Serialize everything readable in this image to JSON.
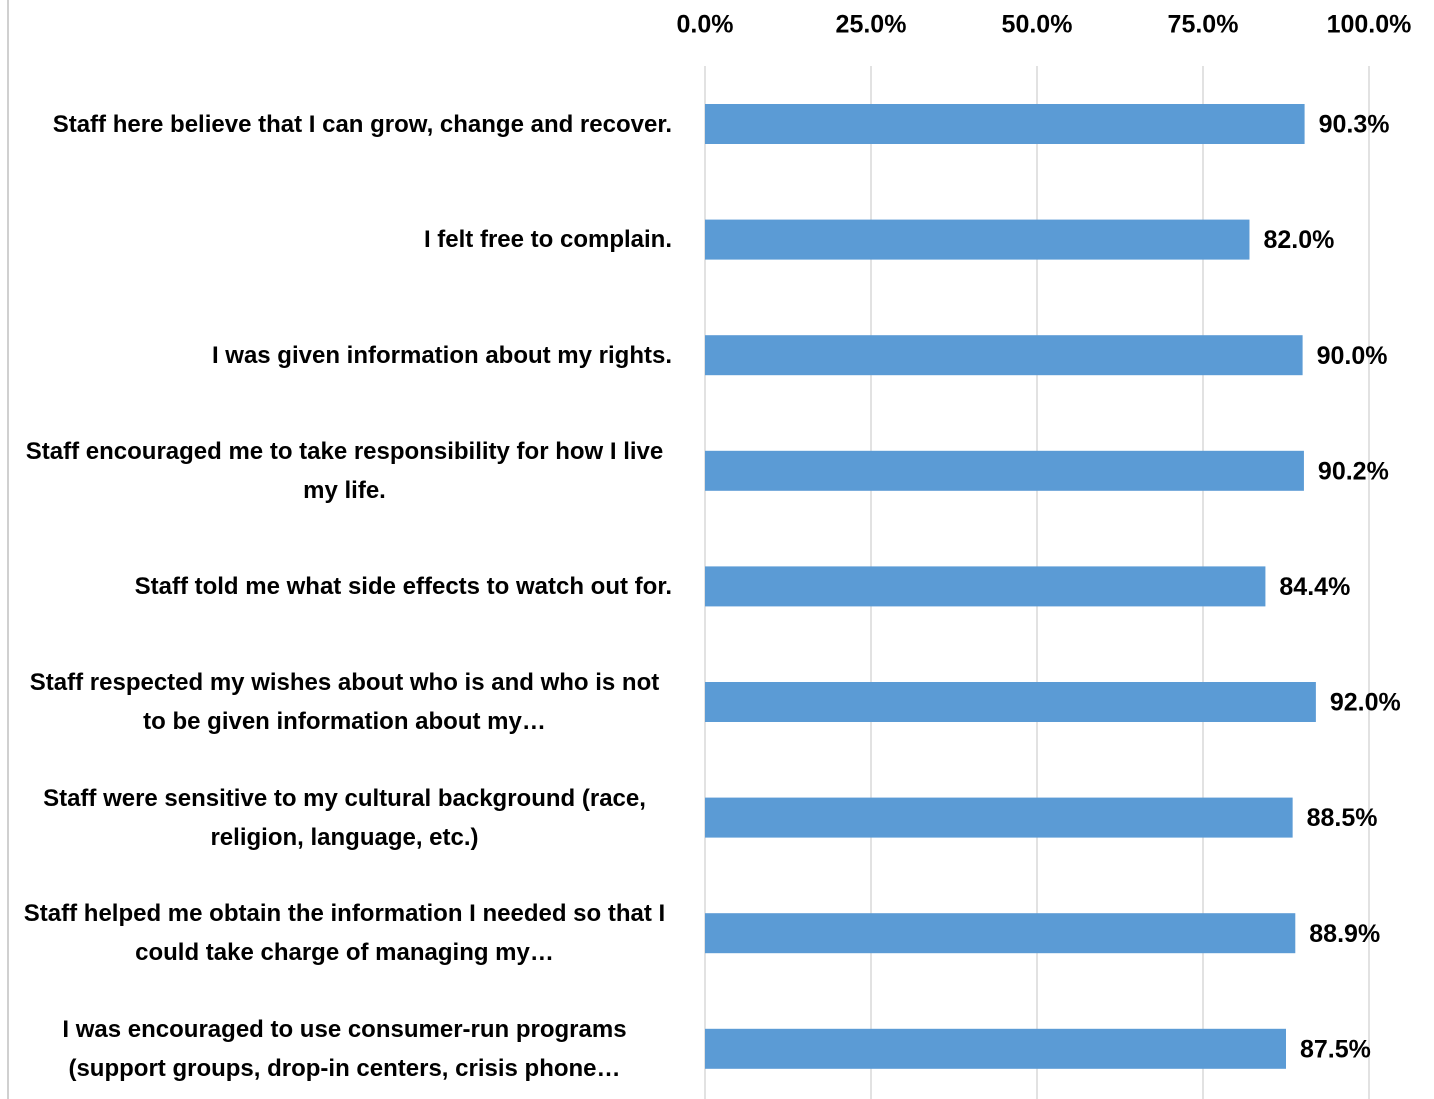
{
  "chart_data": {
    "type": "bar",
    "orientation": "horizontal",
    "categories": [
      "Staff here believe that I can grow, change and recover.",
      "I felt free to complain.",
      "I was given information about my rights.",
      "Staff encouraged me to take responsibility for how I live my life.",
      "Staff told me what side effects to watch out for.",
      "Staff respected my wishes about who is and who is not to be given information about my…",
      "Staff were sensitive to my cultural background (race, religion, language, etc.)",
      "Staff helped me obtain the information I needed so that I could take charge of managing my…",
      "I was encouraged to use consumer-run programs (support groups, drop-in centers, crisis phone…"
    ],
    "values": [
      90.3,
      82.0,
      90.0,
      90.2,
      84.4,
      92.0,
      88.5,
      88.9,
      87.5
    ],
    "value_labels": [
      "90.3%",
      "82.0%",
      "90.0%",
      "90.2%",
      "84.4%",
      "92.0%",
      "88.5%",
      "88.9%",
      "87.5%"
    ],
    "color": "#5b9bd5",
    "xlim": [
      0,
      100
    ],
    "xticks": [
      {
        "value": 0,
        "label": "0.0%"
      },
      {
        "value": 25,
        "label": "25.0%"
      },
      {
        "value": 50,
        "label": "50.0%"
      },
      {
        "value": 75,
        "label": "75.0%"
      },
      {
        "value": 100,
        "label": "100.0%"
      }
    ],
    "grid": true
  }
}
